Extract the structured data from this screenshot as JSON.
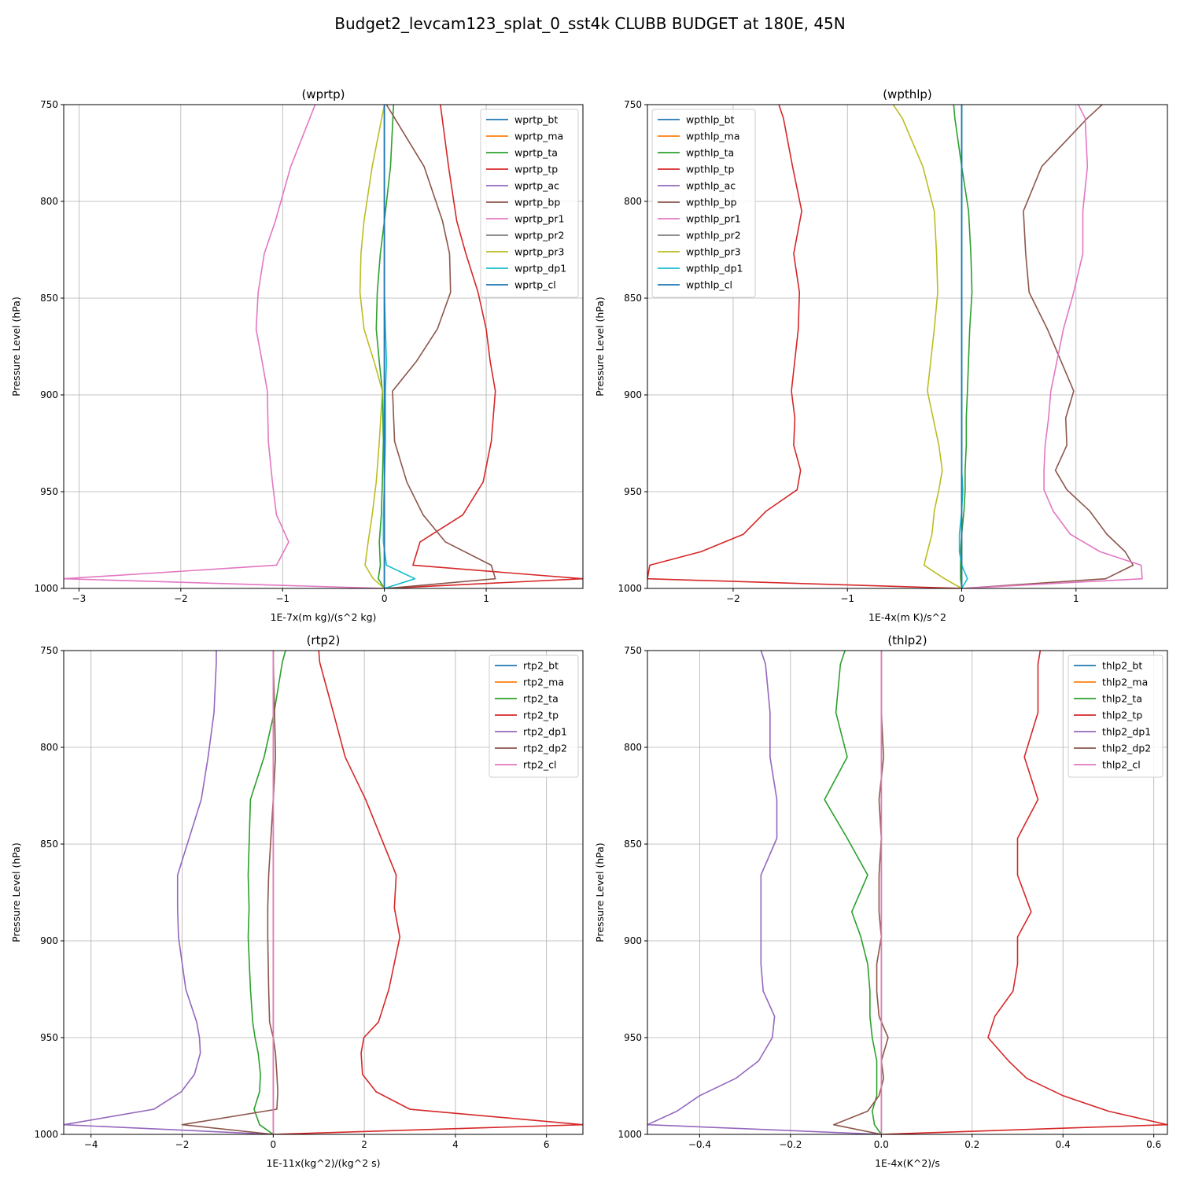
{
  "figure": {
    "title": "Budget2_levcam123_splat_0_sst4k CLUBB BUDGET at 180E, 45N"
  },
  "chart_data": [
    {
      "type": "line",
      "title": "(wprtp)",
      "xlabel": "1E-7x(m kg)/(s^2 kg)",
      "ylabel": "Pressure Level (hPa)",
      "xlim": [
        -3.15,
        1.95
      ],
      "ylim": [
        1000,
        750
      ],
      "xticks": [
        -3,
        -2,
        -1,
        0,
        1
      ],
      "xticklabels": [
        "−3",
        "−2",
        "−1",
        "0",
        "1"
      ],
      "yticks": [
        750,
        800,
        850,
        900,
        950,
        1000
      ],
      "yticklabels": [
        "750",
        "800",
        "850",
        "900",
        "950",
        "1000"
      ],
      "grid": true,
      "legend_position": "top-right",
      "y": [
        750,
        782,
        810,
        827,
        847,
        866,
        883,
        898,
        924,
        945,
        962,
        976,
        988,
        995,
        1000
      ],
      "series": [
        {
          "name": "wprtp_bt",
          "color": "#1f77b4",
          "values": [
            0,
            0,
            0,
            0,
            0,
            0,
            0,
            0,
            0,
            0,
            0,
            0,
            0,
            0,
            0
          ]
        },
        {
          "name": "wprtp_ma",
          "color": "#ff7f0e",
          "values": [
            0,
            0,
            0,
            0,
            0,
            0,
            0,
            0,
            0,
            0,
            0,
            0,
            0,
            0,
            0
          ]
        },
        {
          "name": "wprtp_ta",
          "color": "#2ca02c",
          "values": [
            0.09,
            0.06,
            0.0,
            -0.04,
            -0.07,
            -0.08,
            -0.05,
            -0.02,
            -0.01,
            -0.02,
            -0.03,
            -0.05,
            -0.04,
            -0.06,
            0
          ]
        },
        {
          "name": "wprtp_tp",
          "color": "#d62728",
          "values": [
            0.55,
            0.63,
            0.71,
            0.8,
            0.92,
            1.0,
            1.04,
            1.09,
            1.05,
            0.97,
            0.77,
            0.35,
            0.28,
            1.95,
            0
          ]
        },
        {
          "name": "wprtp_ac",
          "color": "#9467bd",
          "values": [
            0,
            0,
            0,
            0,
            0,
            0,
            0,
            0,
            0,
            0,
            0,
            0,
            0,
            0,
            0
          ]
        },
        {
          "name": "wprtp_bp",
          "color": "#8c564b",
          "values": [
            0.02,
            0.39,
            0.57,
            0.64,
            0.65,
            0.52,
            0.31,
            0.08,
            0.1,
            0.22,
            0.38,
            0.6,
            1.05,
            1.09,
            0.02
          ]
        },
        {
          "name": "wprtp_pr1",
          "color": "#e377c2",
          "values": [
            -0.68,
            -0.92,
            -1.07,
            -1.18,
            -1.24,
            -1.26,
            -1.2,
            -1.15,
            -1.14,
            -1.1,
            -1.06,
            -0.94,
            -1.06,
            -3.15,
            0
          ]
        },
        {
          "name": "wprtp_pr2",
          "color": "#7f7f7f",
          "values": [
            0,
            0,
            0,
            0,
            0,
            0,
            0,
            0,
            0,
            0,
            0,
            0,
            0,
            0,
            0
          ]
        },
        {
          "name": "wprtp_pr3",
          "color": "#bcbd22",
          "values": [
            0.0,
            -0.12,
            -0.2,
            -0.23,
            -0.24,
            -0.2,
            -0.1,
            -0.02,
            -0.05,
            -0.08,
            -0.12,
            -0.16,
            -0.19,
            -0.11,
            0
          ]
        },
        {
          "name": "wprtp_dp1",
          "color": "#17becf",
          "values": [
            0,
            0,
            0,
            0,
            0,
            0.01,
            0.02,
            0.01,
            0.01,
            0.0,
            -0.01,
            -0.01,
            0.02,
            0.3,
            0
          ]
        },
        {
          "name": "wprtp_cl",
          "color": "#1f77b4",
          "values": [
            0,
            0,
            0,
            0,
            0,
            0,
            0,
            0,
            0,
            0,
            0,
            0,
            0,
            0,
            0
          ]
        }
      ]
    },
    {
      "type": "line",
      "title": "(wpthlp)",
      "xlabel": "1E-4x(m K)/s^2",
      "ylabel": "Pressure Level (hPa)",
      "xlim": [
        -2.75,
        1.8
      ],
      "ylim": [
        1000,
        750
      ],
      "xticks": [
        -2,
        -1,
        0,
        1
      ],
      "xticklabels": [
        "−2",
        "−1",
        "0",
        "1"
      ],
      "yticks": [
        750,
        800,
        850,
        900,
        950,
        1000
      ],
      "yticklabels": [
        "750",
        "800",
        "850",
        "900",
        "950",
        "1000"
      ],
      "grid": true,
      "legend_position": "top-left",
      "y": [
        750,
        757,
        782,
        805,
        827,
        847,
        866,
        898,
        912,
        926,
        939,
        949,
        960,
        972,
        981,
        988,
        995,
        1000
      ],
      "series": [
        {
          "name": "wpthlp_bt",
          "color": "#1f77b4",
          "values": [
            0,
            0,
            0,
            0,
            0,
            0,
            0,
            0,
            0,
            0,
            0,
            0,
            0,
            0,
            0,
            0,
            0,
            0
          ]
        },
        {
          "name": "wpthlp_ma",
          "color": "#ff7f0e",
          "values": [
            0,
            0,
            0,
            0,
            0,
            0,
            0,
            0,
            0,
            0,
            0,
            0,
            0,
            0,
            0,
            0,
            0,
            0
          ]
        },
        {
          "name": "wpthlp_ta",
          "color": "#2ca02c",
          "values": [
            -0.07,
            -0.06,
            0.0,
            0.06,
            0.08,
            0.09,
            0.07,
            0.05,
            0.04,
            0.04,
            0.03,
            0.03,
            0.02,
            0.0,
            -0.01,
            -0.01,
            -0.01,
            0
          ]
        },
        {
          "name": "wpthlp_tp",
          "color": "#d62728",
          "values": [
            -1.6,
            -1.56,
            -1.48,
            -1.4,
            -1.47,
            -1.42,
            -1.43,
            -1.49,
            -1.46,
            -1.47,
            -1.41,
            -1.44,
            -1.71,
            -1.91,
            -2.28,
            -2.73,
            -2.75,
            0
          ]
        },
        {
          "name": "wpthlp_ac",
          "color": "#9467bd",
          "values": [
            0,
            0,
            0,
            0,
            0,
            0,
            0,
            0,
            0,
            0,
            0,
            0,
            0,
            0,
            0,
            0,
            0,
            0
          ]
        },
        {
          "name": "wpthlp_bp",
          "color": "#8c564b",
          "values": [
            1.23,
            1.1,
            0.7,
            0.54,
            0.56,
            0.59,
            0.75,
            0.98,
            0.91,
            0.92,
            0.82,
            0.92,
            1.12,
            1.27,
            1.43,
            1.5,
            1.26,
            0
          ]
        },
        {
          "name": "wpthlp_pr1",
          "color": "#e377c2",
          "values": [
            1.02,
            1.08,
            1.1,
            1.06,
            1.06,
            0.98,
            0.89,
            0.78,
            0.76,
            0.73,
            0.72,
            0.72,
            0.8,
            0.95,
            1.21,
            1.57,
            1.58,
            0
          ]
        },
        {
          "name": "wpthlp_pr2",
          "color": "#7f7f7f",
          "values": [
            0,
            0,
            0,
            0,
            0,
            0,
            0,
            0,
            0,
            0,
            0,
            0,
            0,
            0,
            0,
            0,
            0,
            0
          ]
        },
        {
          "name": "wpthlp_pr3",
          "color": "#bcbd22",
          "values": [
            -0.6,
            -0.52,
            -0.34,
            -0.24,
            -0.22,
            -0.21,
            -0.24,
            -0.3,
            -0.25,
            -0.2,
            -0.17,
            -0.2,
            -0.24,
            -0.26,
            -0.3,
            -0.33,
            -0.15,
            0
          ]
        },
        {
          "name": "wpthlp_dp1",
          "color": "#17becf",
          "values": [
            0,
            0,
            0,
            0,
            0,
            0,
            0,
            0,
            0,
            0,
            0,
            0.01,
            0,
            -0.02,
            -0.02,
            0,
            0.05,
            0
          ]
        },
        {
          "name": "wpthlp_cl",
          "color": "#1f77b4",
          "values": [
            0,
            0,
            0,
            0,
            0,
            0,
            0,
            0,
            0,
            0,
            0,
            0,
            0,
            0,
            0,
            0,
            0,
            0
          ]
        }
      ]
    },
    {
      "type": "line",
      "title": "(rtp2)",
      "xlabel": "1E-11x(kg^2)/(kg^2 s)",
      "ylabel": "Pressure Level (hPa)",
      "xlim": [
        -4.6,
        6.8
      ],
      "ylim": [
        1000,
        750
      ],
      "xticks": [
        -4,
        -2,
        0,
        2,
        4,
        6
      ],
      "xticklabels": [
        "−4",
        "−2",
        "0",
        "2",
        "4",
        "6"
      ],
      "yticks": [
        750,
        800,
        850,
        900,
        950,
        1000
      ],
      "yticklabels": [
        "750",
        "800",
        "850",
        "900",
        "950",
        "1000"
      ],
      "grid": true,
      "legend_position": "top-right",
      "y": [
        750,
        756,
        782,
        805,
        827,
        866,
        883,
        898,
        925,
        942,
        950,
        958,
        969,
        978,
        987,
        995,
        1000
      ],
      "series": [
        {
          "name": "rtp2_bt",
          "color": "#1f77b4",
          "values": [
            0,
            0,
            0,
            0,
            0,
            0,
            0,
            0,
            0,
            0,
            0,
            0,
            0,
            0,
            0,
            0,
            0
          ]
        },
        {
          "name": "rtp2_ma",
          "color": "#ff7f0e",
          "values": [
            0,
            0,
            0,
            0,
            0,
            0,
            0,
            0,
            0,
            0,
            0,
            0,
            0,
            0,
            0,
            0,
            0
          ]
        },
        {
          "name": "rtp2_ta",
          "color": "#2ca02c",
          "values": [
            0.27,
            0.2,
            0.02,
            -0.2,
            -0.5,
            -0.55,
            -0.53,
            -0.55,
            -0.5,
            -0.45,
            -0.4,
            -0.33,
            -0.28,
            -0.3,
            -0.42,
            -0.3,
            0
          ]
        },
        {
          "name": "rtp2_tp",
          "color": "#d62728",
          "values": [
            1.0,
            1.02,
            1.32,
            1.58,
            2.03,
            2.7,
            2.66,
            2.78,
            2.54,
            2.31,
            1.99,
            1.93,
            1.96,
            2.26,
            3.0,
            6.8,
            0
          ]
        },
        {
          "name": "rtp2_dp1",
          "color": "#9467bd",
          "values": [
            -1.25,
            -1.25,
            -1.3,
            -1.43,
            -1.58,
            -2.1,
            -2.1,
            -2.08,
            -1.92,
            -1.68,
            -1.62,
            -1.6,
            -1.73,
            -2.02,
            -2.62,
            -4.6,
            0
          ]
        },
        {
          "name": "rtp2_dp2",
          "color": "#8c564b",
          "values": [
            0.0,
            0.0,
            0.03,
            0.05,
            0.0,
            -0.1,
            -0.12,
            -0.12,
            -0.1,
            -0.08,
            0.0,
            0.05,
            0.08,
            0.1,
            0.08,
            -2.0,
            0
          ]
        },
        {
          "name": "rtp2_cl",
          "color": "#e377c2",
          "values": [
            0,
            0,
            0,
            0,
            0,
            0,
            0,
            0,
            0,
            0,
            0,
            0,
            0,
            0,
            0,
            0,
            0
          ]
        }
      ]
    },
    {
      "type": "line",
      "title": "(thlp2)",
      "xlabel": "1E-4x(K^2)/s",
      "ylabel": "Pressure Level (hPa)",
      "xlim": [
        -0.515,
        0.63
      ],
      "ylim": [
        1000,
        750
      ],
      "xticks": [
        -0.4,
        -0.2,
        0.0,
        0.2,
        0.4,
        0.6
      ],
      "xticklabels": [
        "−0.4",
        "−0.2",
        "0.0",
        "0.2",
        "0.4",
        "0.6"
      ],
      "yticks": [
        750,
        800,
        850,
        900,
        950,
        1000
      ],
      "yticklabels": [
        "750",
        "800",
        "850",
        "900",
        "950",
        "1000"
      ],
      "grid": true,
      "legend_position": "top-right",
      "y": [
        750,
        757,
        782,
        805,
        827,
        847,
        866,
        885,
        898,
        912,
        926,
        939,
        950,
        962,
        971,
        980,
        988,
        995,
        1000
      ],
      "series": [
        {
          "name": "thlp2_bt",
          "color": "#1f77b4",
          "values": [
            0,
            0,
            0,
            0,
            0,
            0,
            0,
            0,
            0,
            0,
            0,
            0,
            0,
            0,
            0,
            0,
            0,
            0,
            0
          ]
        },
        {
          "name": "thlp2_ma",
          "color": "#ff7f0e",
          "values": [
            0,
            0,
            0,
            0,
            0,
            0,
            0,
            0,
            0,
            0,
            0,
            0,
            0,
            0,
            0,
            0,
            0,
            0,
            0
          ]
        },
        {
          "name": "thlp2_ta",
          "color": "#2ca02c",
          "values": [
            -0.08,
            -0.09,
            -0.1,
            -0.075,
            -0.125,
            -0.075,
            -0.03,
            -0.065,
            -0.045,
            -0.03,
            -0.025,
            -0.025,
            -0.02,
            -0.01,
            -0.01,
            -0.01,
            -0.02,
            -0.015,
            0
          ]
        },
        {
          "name": "thlp2_tp",
          "color": "#d62728",
          "values": [
            0.35,
            0.345,
            0.345,
            0.315,
            0.345,
            0.3,
            0.3,
            0.33,
            0.3,
            0.3,
            0.29,
            0.25,
            0.235,
            0.28,
            0.32,
            0.4,
            0.5,
            0.63,
            0
          ]
        },
        {
          "name": "thlp2_dp1",
          "color": "#9467bd",
          "values": [
            -0.265,
            -0.255,
            -0.245,
            -0.245,
            -0.23,
            -0.23,
            -0.265,
            -0.265,
            -0.265,
            -0.265,
            -0.26,
            -0.235,
            -0.24,
            -0.27,
            -0.32,
            -0.4,
            -0.45,
            -0.515,
            0
          ]
        },
        {
          "name": "thlp2_dp2",
          "color": "#8c564b",
          "values": [
            0.0,
            0.0,
            0.0,
            0.005,
            -0.005,
            0.0,
            -0.005,
            -0.005,
            0.0,
            -0.01,
            -0.01,
            -0.005,
            0.015,
            0.0,
            0.005,
            -0.005,
            -0.03,
            -0.105,
            0
          ]
        },
        {
          "name": "thlp2_cl",
          "color": "#e377c2",
          "values": [
            0,
            0,
            0,
            0,
            0,
            0,
            0,
            0,
            0,
            0,
            0,
            0,
            0,
            0,
            0,
            0,
            0,
            0,
            0
          ]
        }
      ]
    }
  ]
}
